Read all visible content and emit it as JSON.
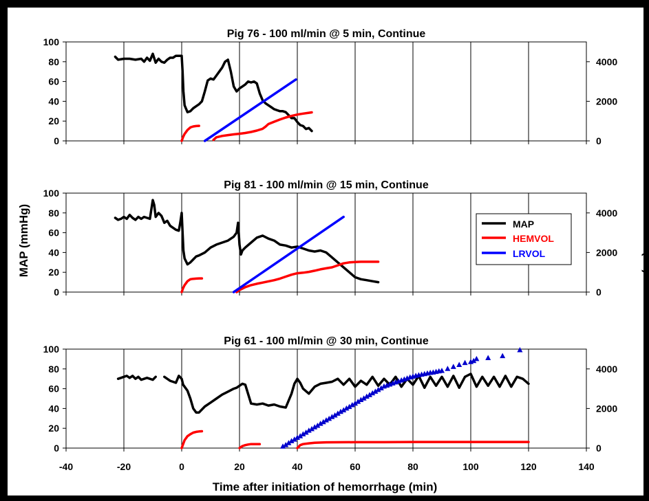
{
  "figure": {
    "ylabel_left": "MAP (mmHg)",
    "ylabel_right": "Volume (ml)",
    "xlabel": "Time after initiation of hemorrhage (min)",
    "x_ticks": [
      "-40",
      "-20",
      "0",
      "20",
      "40",
      "60",
      "80",
      "100",
      "120",
      "140"
    ]
  },
  "legend": {
    "placement": "right side of middle panel",
    "items": [
      {
        "label": "MAP",
        "color": "#000000"
      },
      {
        "label": "HEMVOL",
        "color": "#ff0000"
      },
      {
        "label": "LRVOL",
        "color": "#0000ff"
      }
    ]
  },
  "chart_data": [
    {
      "type": "line",
      "title": "Pig 76 - 100 ml/min @  5 min, Continue",
      "xlim": [
        -40,
        140
      ],
      "ylim_left": [
        0,
        100
      ],
      "ylim_right": [
        0,
        5000
      ],
      "left_ticks": [
        "0",
        "20",
        "40",
        "60",
        "80",
        "100"
      ],
      "right_ticks": [
        "0",
        "2000",
        "4000"
      ],
      "grid": "vertical",
      "series": [
        {
          "name": "MAP",
          "axis": "left",
          "color": "#000000",
          "x": [
            -23,
            -22,
            -20,
            -18,
            -16,
            -14,
            -13,
            -12,
            -11,
            -10,
            -9,
            -8,
            -7,
            -6,
            -5,
            -4,
            -3,
            -2,
            -1,
            0,
            0.3,
            0.6,
            1,
            2,
            3,
            4,
            5,
            6,
            7,
            8,
            9,
            10,
            11,
            12,
            13,
            14,
            15,
            16,
            17,
            18,
            19,
            20,
            21,
            22,
            23,
            24,
            25,
            26,
            27,
            28,
            29,
            30,
            31,
            32,
            33,
            34,
            35,
            36,
            37,
            38,
            39,
            40,
            41,
            42,
            43,
            44,
            45
          ],
          "y": [
            85,
            82,
            83,
            83,
            82,
            83,
            80,
            84,
            81,
            88,
            79,
            83,
            80,
            79,
            82,
            84,
            84,
            86,
            86,
            86,
            70,
            50,
            36,
            29,
            30,
            33,
            35,
            37,
            40,
            50,
            61,
            63,
            62,
            66,
            70,
            74,
            80,
            82,
            70,
            55,
            50,
            53,
            55,
            57,
            60,
            59,
            60,
            58,
            48,
            41,
            38,
            36,
            34,
            32,
            31,
            30,
            30,
            29,
            26,
            23,
            23,
            19,
            16,
            15,
            12,
            13,
            10
          ]
        },
        {
          "name": "HEMVOL",
          "axis": "right",
          "color": "#ff0000",
          "x": [
            0,
            0.5,
            1,
            2,
            3,
            4,
            5,
            6
          ],
          "y": [
            0,
            200,
            350,
            550,
            680,
            730,
            750,
            760
          ]
        },
        {
          "name": "HEMVOL",
          "axis": "right",
          "color": "#ff0000",
          "x": [
            11,
            12,
            14,
            16,
            18,
            20,
            22,
            24,
            26,
            28,
            29,
            30,
            32,
            34,
            36,
            38,
            40,
            42,
            44,
            45
          ],
          "y": [
            50,
            180,
            250,
            290,
            330,
            360,
            400,
            450,
            520,
            610,
            720,
            850,
            970,
            1080,
            1180,
            1260,
            1330,
            1380,
            1420,
            1440
          ]
        },
        {
          "name": "LRVOL",
          "axis": "right",
          "color": "#0000ff",
          "x": [
            8,
            39.5
          ],
          "y": [
            0,
            3100
          ]
        }
      ]
    },
    {
      "type": "line",
      "title": "Pig 81 - 100 ml/min @ 15 min, Continue",
      "xlim": [
        -40,
        140
      ],
      "ylim_left": [
        0,
        100
      ],
      "ylim_right": [
        0,
        5000
      ],
      "left_ticks": [
        "0",
        "20",
        "40",
        "60",
        "80",
        "100"
      ],
      "right_ticks": [
        "0",
        "2000",
        "4000"
      ],
      "grid": "vertical",
      "series": [
        {
          "name": "MAP",
          "axis": "left",
          "color": "#000000",
          "x": [
            -23,
            -22,
            -21,
            -20,
            -19,
            -18,
            -17,
            -16,
            -15,
            -14,
            -13,
            -12,
            -11,
            -10,
            -9.5,
            -9,
            -8.5,
            -8,
            -7,
            -6,
            -5,
            -4,
            -3,
            -2,
            -1,
            -0.5,
            0,
            0.3,
            0.6,
            1,
            2,
            3,
            4,
            5,
            6,
            8,
            10,
            12,
            14,
            16,
            18,
            19,
            19.5,
            20,
            20.5,
            21,
            22,
            24,
            26,
            28,
            30,
            32,
            34,
            36,
            38,
            40,
            42,
            44,
            46,
            48,
            50,
            52,
            54,
            56,
            58,
            60,
            62,
            64,
            66,
            68
          ],
          "y": [
            75,
            73,
            74,
            76,
            74,
            78,
            75,
            73,
            76,
            74,
            76,
            75,
            74,
            93,
            88,
            76,
            78,
            80,
            77,
            70,
            72,
            67,
            65,
            63,
            62,
            70,
            80,
            60,
            42,
            34,
            28,
            30,
            33,
            36,
            37,
            40,
            45,
            48,
            50,
            52,
            56,
            60,
            70,
            48,
            38,
            42,
            45,
            50,
            55,
            57,
            54,
            52,
            48,
            47,
            45,
            46,
            44,
            42,
            41,
            42,
            40,
            35,
            30,
            25,
            20,
            15,
            13,
            12,
            11,
            10
          ]
        },
        {
          "name": "HEMVOL",
          "axis": "right",
          "color": "#ff0000",
          "x": [
            0,
            0.5,
            1,
            2,
            3,
            4,
            5,
            6,
            7
          ],
          "y": [
            0,
            200,
            350,
            550,
            650,
            670,
            680,
            690,
            690
          ]
        },
        {
          "name": "HEMVOL",
          "axis": "right",
          "color": "#ff0000",
          "x": [
            19,
            20,
            22,
            24,
            26,
            28,
            30,
            32,
            34,
            36,
            38,
            40,
            42,
            44,
            46,
            48,
            50,
            52,
            54,
            56,
            58,
            60,
            62,
            64,
            66,
            68
          ],
          "y": [
            0,
            100,
            250,
            350,
            420,
            480,
            540,
            600,
            680,
            780,
            880,
            950,
            980,
            1020,
            1080,
            1150,
            1200,
            1250,
            1350,
            1450,
            1500,
            1520,
            1530,
            1530,
            1530,
            1530
          ]
        },
        {
          "name": "LRVOL",
          "axis": "right",
          "color": "#0000ff",
          "x": [
            18,
            56
          ],
          "y": [
            0,
            3800
          ]
        }
      ]
    },
    {
      "type": "line",
      "title": "Pig 61 - 100 ml/min @ 30 min, Continue",
      "xlim": [
        -40,
        140
      ],
      "ylim_left": [
        0,
        100
      ],
      "ylim_right": [
        0,
        5000
      ],
      "left_ticks": [
        "0",
        "20",
        "40",
        "60",
        "80",
        "100"
      ],
      "right_ticks": [
        "0",
        "2000",
        "4000"
      ],
      "grid": "vertical",
      "series": [
        {
          "name": "MAP",
          "axis": "left",
          "color": "#000000",
          "x": [
            -22,
            -21,
            -20,
            -19,
            -18,
            -17,
            -16,
            -15,
            -14,
            -13,
            -12,
            -11,
            -10,
            -9
          ],
          "y": [
            70,
            71,
            72,
            73,
            71,
            73,
            70,
            72,
            69,
            70,
            71,
            70,
            69,
            72
          ]
        },
        {
          "name": "MAP",
          "axis": "left",
          "color": "#000000",
          "x": [
            -6,
            -5,
            -4,
            -3,
            -2,
            -1,
            0,
            0.5,
            1,
            2,
            3,
            4,
            5,
            6,
            8,
            10,
            12,
            14,
            16,
            18,
            19,
            20,
            21,
            22,
            24,
            26,
            28,
            30,
            32,
            34,
            36,
            38,
            39,
            40,
            41,
            42,
            44,
            46,
            48,
            50,
            52,
            54,
            56,
            58,
            60,
            62,
            64,
            66,
            68,
            70,
            72,
            74,
            76,
            78,
            80,
            82,
            84,
            86,
            88,
            90,
            92,
            94,
            96,
            98,
            100,
            102,
            104,
            106,
            108,
            110,
            112,
            114,
            116,
            118,
            120
          ],
          "y": [
            72,
            70,
            68,
            67,
            66,
            73,
            70,
            64,
            62,
            58,
            50,
            40,
            36,
            36,
            42,
            46,
            50,
            54,
            57,
            60,
            61,
            63,
            65,
            64,
            45,
            44,
            45,
            43,
            44,
            42,
            41,
            55,
            65,
            70,
            66,
            60,
            55,
            62,
            65,
            66,
            67,
            70,
            64,
            70,
            62,
            68,
            64,
            72,
            63,
            70,
            64,
            72,
            62,
            70,
            64,
            73,
            61,
            72,
            63,
            72,
            62,
            73,
            61,
            72,
            75,
            62,
            72,
            63,
            72,
            62,
            73,
            62,
            72,
            70,
            65
          ]
        },
        {
          "name": "HEMVOL",
          "axis": "right",
          "color": "#ff0000",
          "x": [
            0,
            0.5,
            1,
            2,
            3,
            4,
            5,
            6,
            7
          ],
          "y": [
            0,
            200,
            400,
            600,
            700,
            780,
            820,
            840,
            850
          ]
        },
        {
          "name": "HEMVOL",
          "axis": "right",
          "color": "#ff0000",
          "x": [
            20,
            21,
            22,
            23,
            24,
            25,
            26,
            27
          ],
          "y": [
            0,
            100,
            150,
            180,
            200,
            200,
            200,
            200
          ]
        },
        {
          "name": "HEMVOL",
          "axis": "right",
          "color": "#ff0000",
          "x": [
            40,
            41,
            42,
            44,
            46,
            50,
            60,
            70,
            80,
            90,
            100,
            110,
            120
          ],
          "y": [
            0,
            150,
            200,
            240,
            270,
            290,
            300,
            300,
            310,
            310,
            310,
            310,
            310
          ]
        },
        {
          "name": "LRVOL",
          "axis": "right",
          "color": "#0000cc",
          "marker": "triangle",
          "x": [
            35,
            36,
            37,
            38,
            39,
            40,
            41,
            42,
            43,
            44,
            45,
            46,
            47,
            48,
            49,
            50,
            51,
            52,
            53,
            54,
            55,
            56,
            57,
            58,
            59,
            60,
            61,
            62,
            63,
            64,
            65,
            66,
            67,
            68,
            69,
            70,
            71,
            72,
            73,
            74,
            75,
            76,
            77,
            78,
            79,
            80,
            81,
            82,
            83,
            84,
            85,
            86,
            87,
            88,
            89,
            90,
            92,
            94,
            96,
            98,
            100,
            101,
            102,
            106,
            111,
            117
          ],
          "y": [
            80,
            150,
            250,
            350,
            430,
            520,
            600,
            700,
            780,
            880,
            960,
            1050,
            1130,
            1230,
            1310,
            1400,
            1480,
            1570,
            1650,
            1740,
            1830,
            1910,
            2000,
            2080,
            2170,
            2250,
            2340,
            2430,
            2510,
            2600,
            2680,
            2770,
            2850,
            2940,
            3020,
            3110,
            3160,
            3210,
            3270,
            3320,
            3370,
            3420,
            3470,
            3520,
            3570,
            3610,
            3650,
            3680,
            3710,
            3740,
            3770,
            3800,
            3820,
            3850,
            3880,
            3900,
            4000,
            4100,
            4200,
            4300,
            4350,
            4400,
            4500,
            4550,
            4650,
            4950
          ]
        }
      ]
    }
  ]
}
